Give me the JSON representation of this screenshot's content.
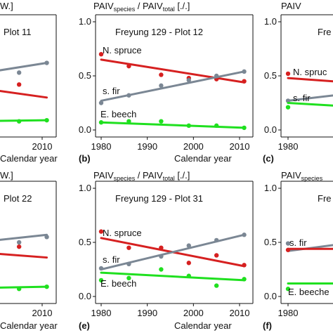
{
  "colors": {
    "spruce": "#d62020",
    "fir": "#7b8794",
    "beech": "#1fe01f",
    "axis": "#111111"
  },
  "ylabel_parts": [
    "PAIV",
    "species",
    " / PAIV",
    "total",
    " [./.]"
  ],
  "ylabel_partial": {
    "bracket_tail": "W.]",
    "paiv": "PAIV",
    "species": "species"
  },
  "chart_data": [
    {
      "id": "a",
      "type": "scatter",
      "title": "Plot 11",
      "xlabel": "Calendar year",
      "xticks": [
        "000",
        "2010"
      ],
      "yticks": [],
      "series": [
        {
          "name": "",
          "color_key": "fir",
          "points": [
            [
              2005,
              0.53
            ],
            [
              2011,
              0.62
            ]
          ],
          "fit": [
            [
              1974,
              0.37
            ],
            [
              2011,
              0.62
            ]
          ]
        },
        {
          "name": "",
          "color_key": "spruce",
          "points": [
            [
              2005,
              0.42
            ]
          ],
          "fit": [
            [
              1974,
              0.52
            ],
            [
              2011,
              0.3
            ]
          ]
        },
        {
          "name": "",
          "color_key": "beech",
          "points": [
            [
              2005,
              0.08
            ],
            [
              2011,
              0.09
            ]
          ],
          "fit": [
            [
              1974,
              0.07
            ],
            [
              2011,
              0.09
            ]
          ]
        }
      ]
    },
    {
      "id": "b",
      "type": "scatter",
      "tag": "(b)",
      "title": "Freyung 129 - Plot 12",
      "xlabel": "Calendar year",
      "xticks": [
        "1980",
        "1990",
        "2000",
        "2010"
      ],
      "yticks": [
        "0.0",
        "0.5",
        "1.0"
      ],
      "series": [
        {
          "name": "N. spruce",
          "color_key": "spruce",
          "points": [
            [
              1980,
              0.7
            ],
            [
              1986,
              0.59
            ],
            [
              1993,
              0.51
            ],
            [
              1999,
              0.48
            ],
            [
              2005,
              0.47
            ],
            [
              2011,
              0.45
            ]
          ],
          "fit": [
            [
              1980,
              0.65
            ],
            [
              2011,
              0.44
            ]
          ]
        },
        {
          "name": "s. fir",
          "color_key": "fir",
          "points": [
            [
              1980,
              0.25
            ],
            [
              1986,
              0.32
            ],
            [
              1993,
              0.41
            ],
            [
              1999,
              0.46
            ],
            [
              2005,
              0.5
            ],
            [
              2011,
              0.54
            ]
          ],
          "fit": [
            [
              1980,
              0.27
            ],
            [
              2011,
              0.54
            ]
          ]
        },
        {
          "name": "E. beech",
          "color_key": "beech",
          "points": [
            [
              1980,
              0.07
            ],
            [
              1986,
              0.08
            ],
            [
              1993,
              0.08
            ],
            [
              1999,
              0.04
            ],
            [
              2005,
              0.04
            ],
            [
              2011,
              0.02
            ]
          ],
          "fit": [
            [
              1980,
              0.07
            ],
            [
              2011,
              0.02
            ]
          ]
        }
      ]
    },
    {
      "id": "c",
      "type": "scatter",
      "tag": "(c)",
      "title": "Fre",
      "xlabel": "",
      "xticks": [
        "1980",
        "1"
      ],
      "yticks": [
        "0.0",
        "0.5",
        "1.0"
      ],
      "series": [
        {
          "name": "N. spruc",
          "color_key": "spruce",
          "points": [
            [
              1980,
              0.52
            ],
            [
              1993,
              0.42
            ]
          ],
          "fit": [
            [
              1980,
              0.48
            ],
            [
              1996,
              0.43
            ]
          ]
        },
        {
          "name": "s. fir",
          "color_key": "fir",
          "points": [
            [
              1980,
              0.27
            ],
            [
              1993,
              0.3
            ]
          ],
          "fit": [
            [
              1980,
              0.27
            ],
            [
              1996,
              0.35
            ]
          ]
        },
        {
          "name": "",
          "color_key": "beech",
          "points": [
            [
              1980,
              0.21
            ]
          ],
          "fit": [
            [
              1980,
              0.25
            ],
            [
              1996,
              0.21
            ]
          ]
        }
      ]
    },
    {
      "id": "d",
      "type": "scatter",
      "title": "Plot 22",
      "xlabel": "Calendar year",
      "xticks": [
        "000",
        "2010"
      ],
      "yticks": [],
      "series": [
        {
          "name": "",
          "color_key": "fir",
          "points": [
            [
              2005,
              0.5
            ],
            [
              2011,
              0.55
            ]
          ],
          "fit": [
            [
              1974,
              0.4
            ],
            [
              2011,
              0.57
            ]
          ]
        },
        {
          "name": "",
          "color_key": "spruce",
          "points": [
            [
              2005,
              0.46
            ]
          ],
          "fit": [
            [
              1974,
              0.48
            ],
            [
              2011,
              0.36
            ]
          ]
        },
        {
          "name": "",
          "color_key": "beech",
          "points": [
            [
              2005,
              0.07
            ],
            [
              2011,
              0.09
            ]
          ],
          "fit": [
            [
              1974,
              0.06
            ],
            [
              2011,
              0.09
            ]
          ]
        }
      ]
    },
    {
      "id": "e",
      "type": "scatter",
      "tag": "(e)",
      "title": "Freyung 129 - Plot 31",
      "xlabel": "Calendar year",
      "xticks": [
        "1980",
        "1990",
        "2000",
        "2010"
      ],
      "yticks": [
        "0.0",
        "0.5",
        "1.0"
      ],
      "series": [
        {
          "name": "N. spruce",
          "color_key": "spruce",
          "points": [
            [
              1980,
              0.6
            ],
            [
              1986,
              0.45
            ],
            [
              1993,
              0.45
            ],
            [
              1999,
              0.31
            ],
            [
              2005,
              0.38
            ],
            [
              2011,
              0.29
            ]
          ],
          "fit": [
            [
              1980,
              0.54
            ],
            [
              2011,
              0.28
            ]
          ]
        },
        {
          "name": "s. fir",
          "color_key": "fir",
          "points": [
            [
              1980,
              0.26
            ],
            [
              1986,
              0.3
            ],
            [
              1993,
              0.37
            ],
            [
              1999,
              0.47
            ],
            [
              2005,
              0.52
            ],
            [
              2011,
              0.57
            ]
          ],
          "fit": [
            [
              1980,
              0.25
            ],
            [
              2011,
              0.57
            ]
          ]
        },
        {
          "name": "E. beech",
          "color_key": "beech",
          "points": [
            [
              1980,
              0.15
            ],
            [
              1986,
              0.17
            ],
            [
              1993,
              0.25
            ],
            [
              1999,
              0.19
            ],
            [
              2005,
              0.1
            ],
            [
              2011,
              0.16
            ]
          ],
          "fit": [
            [
              1980,
              0.22
            ],
            [
              2011,
              0.15
            ]
          ]
        }
      ]
    },
    {
      "id": "f",
      "type": "scatter",
      "tag": "(f)",
      "title": "Fre",
      "xlabel": "",
      "xticks": [
        "1980",
        "1"
      ],
      "yticks": [
        "0.0",
        "0.5",
        "1.0"
      ],
      "series": [
        {
          "name": "s. fir",
          "color_key": "fir",
          "points": [
            [
              1980,
              0.49
            ],
            [
              1996,
              0.52
            ]
          ],
          "fit": [
            [
              1980,
              0.42
            ],
            [
              1996,
              0.51
            ]
          ]
        },
        {
          "name": "",
          "color_key": "spruce",
          "points": [
            [
              1980,
              0.43
            ],
            [
              1996,
              0.47
            ]
          ],
          "fit": [
            [
              1980,
              0.44
            ],
            [
              1996,
              0.44
            ]
          ]
        },
        {
          "name": "E. beeche",
          "color_key": "beech",
          "points": [
            [
              1980,
              0.07
            ]
          ],
          "fit": [
            [
              1980,
              0.12
            ],
            [
              1996,
              0.12
            ]
          ]
        }
      ]
    }
  ]
}
